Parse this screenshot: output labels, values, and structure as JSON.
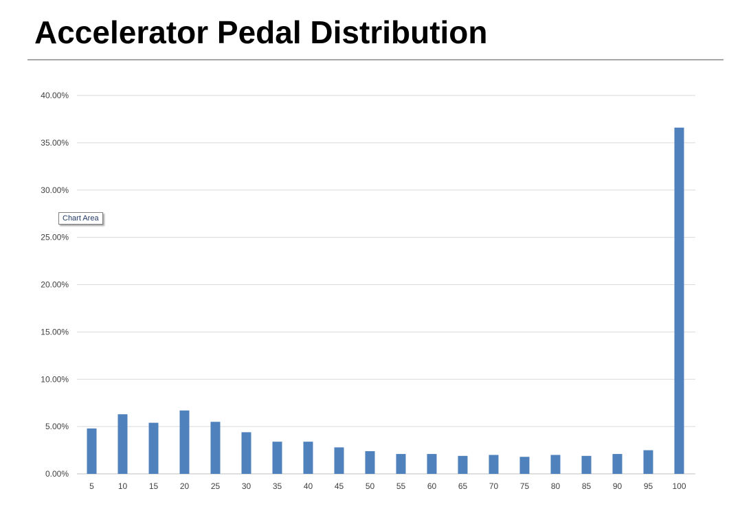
{
  "slide": {
    "title": "Accelerator Pedal Distribution"
  },
  "tooltip": {
    "text": "Chart Area"
  },
  "colors": {
    "bar": "#4f81bd",
    "grid": "#d9d9d9",
    "rule": "#a6a6a6"
  },
  "chart_data": {
    "type": "bar",
    "title": "",
    "xlabel": "",
    "ylabel": "",
    "categories": [
      "5",
      "10",
      "15",
      "20",
      "25",
      "30",
      "35",
      "40",
      "45",
      "50",
      "55",
      "60",
      "65",
      "70",
      "75",
      "80",
      "85",
      "90",
      "95",
      "100"
    ],
    "values": [
      4.8,
      6.3,
      5.4,
      6.7,
      5.5,
      4.4,
      3.4,
      3.4,
      2.8,
      2.4,
      2.1,
      2.1,
      1.9,
      2.0,
      1.8,
      2.0,
      1.9,
      2.1,
      2.5,
      36.6
    ],
    "value_unit": "percent",
    "ylim": [
      0,
      40
    ],
    "yticks": [
      "0.00%",
      "5.00%",
      "10.00%",
      "15.00%",
      "20.00%",
      "25.00%",
      "30.00%",
      "35.00%",
      "40.00%"
    ],
    "ytick_values": [
      0,
      5,
      10,
      15,
      20,
      25,
      30,
      35,
      40
    ],
    "grid": true,
    "legend": "none"
  }
}
